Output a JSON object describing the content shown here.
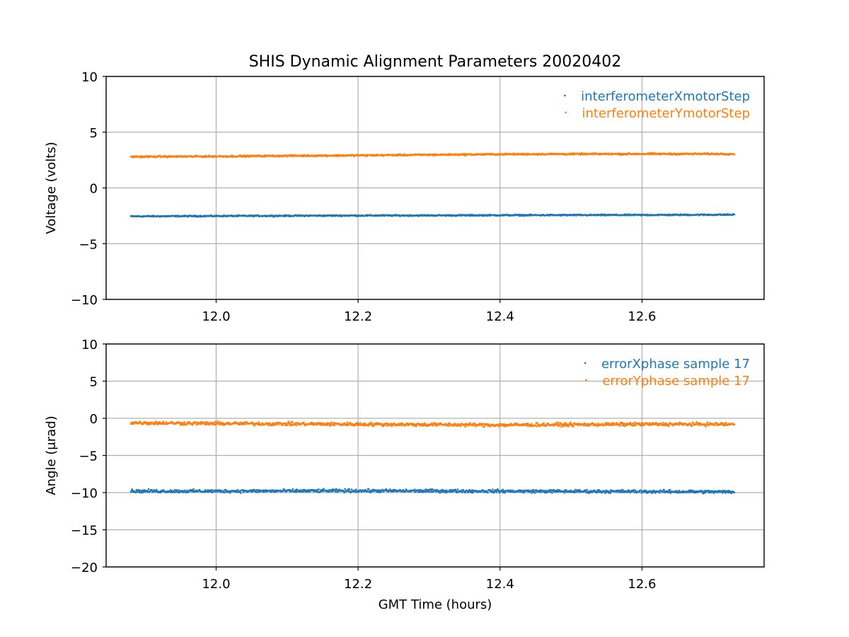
{
  "figure": {
    "title": "SHIS Dynamic Alignment Parameters 20020402"
  },
  "colors": {
    "series_1": "#1f77b4",
    "series_2": "#ff7f0e",
    "grid": "#b0b0b0",
    "axes": "#000000"
  },
  "chart_data": [
    {
      "type": "scatter",
      "xlabel": "",
      "ylabel": "Voltage (volts)",
      "xlim": [
        11.845,
        12.772
      ],
      "ylim": [
        -10,
        10
      ],
      "xticks": [
        12.0,
        12.2,
        12.4,
        12.6
      ],
      "xtick_labels": [
        "12.0",
        "12.2",
        "12.4",
        "12.6"
      ],
      "yticks": [
        -10,
        -5,
        0,
        5,
        10
      ],
      "ytick_labels": [
        "−10",
        "−5",
        "0",
        "5",
        "10"
      ],
      "grid": true,
      "legend_position": "top-right",
      "x_range": [
        11.88,
        12.73
      ],
      "series": [
        {
          "name": "interferometerXmotorStep",
          "color": "#1f77b4",
          "points": [
            [
              11.88,
              -2.55
            ],
            [
              12.0,
              -2.52
            ],
            [
              12.1,
              -2.5
            ],
            [
              12.2,
              -2.48
            ],
            [
              12.3,
              -2.47
            ],
            [
              12.4,
              -2.45
            ],
            [
              12.5,
              -2.44
            ],
            [
              12.6,
              -2.43
            ],
            [
              12.73,
              -2.4
            ]
          ],
          "noise": 0.05
        },
        {
          "name": "interferometerYmotorStep",
          "color": "#ff7f0e",
          "points": [
            [
              11.88,
              2.8
            ],
            [
              12.0,
              2.83
            ],
            [
              12.1,
              2.88
            ],
            [
              12.2,
              2.92
            ],
            [
              12.3,
              2.97
            ],
            [
              12.4,
              3.02
            ],
            [
              12.5,
              3.04
            ],
            [
              12.6,
              3.05
            ],
            [
              12.73,
              3.05
            ]
          ],
          "noise": 0.06
        }
      ]
    },
    {
      "type": "scatter",
      "xlabel": "GMT Time (hours)",
      "ylabel": "Angle (μrad)",
      "xlim": [
        11.845,
        12.772
      ],
      "ylim": [
        -20,
        10
      ],
      "xticks": [
        12.0,
        12.2,
        12.4,
        12.6
      ],
      "xtick_labels": [
        "12.0",
        "12.2",
        "12.4",
        "12.6"
      ],
      "yticks": [
        -20,
        -15,
        -10,
        -5,
        0,
        5,
        10
      ],
      "ytick_labels": [
        "−20",
        "−15",
        "−10",
        "−5",
        "0",
        "5",
        "10"
      ],
      "grid": true,
      "legend_position": "top-right",
      "x_range": [
        11.88,
        12.73
      ],
      "series": [
        {
          "name": "errorXphase sample 17",
          "color": "#1f77b4",
          "points": [
            [
              11.88,
              -9.8
            ],
            [
              12.0,
              -9.8
            ],
            [
              12.2,
              -9.75
            ],
            [
              12.4,
              -9.8
            ],
            [
              12.6,
              -9.85
            ],
            [
              12.73,
              -9.9
            ]
          ],
          "noise": 0.18
        },
        {
          "name": "errorYphase sample 17",
          "color": "#ff7f0e",
          "points": [
            [
              11.88,
              -0.6
            ],
            [
              12.0,
              -0.7
            ],
            [
              12.2,
              -0.8
            ],
            [
              12.4,
              -0.9
            ],
            [
              12.6,
              -0.8
            ],
            [
              12.73,
              -0.8
            ]
          ],
          "noise": 0.2
        }
      ]
    }
  ]
}
